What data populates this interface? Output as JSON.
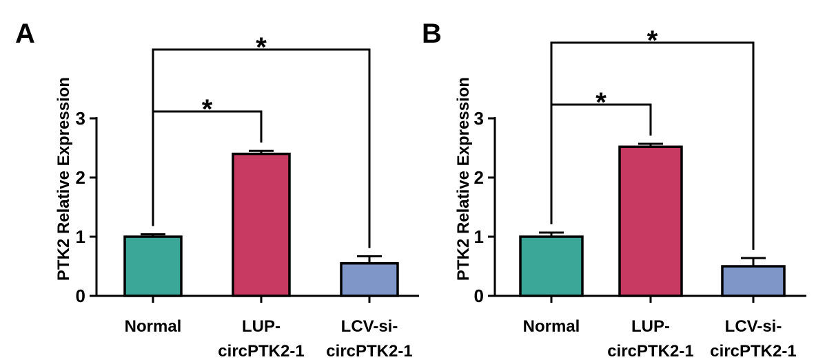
{
  "chart_data": [
    {
      "type": "bar",
      "panel": "A",
      "ylabel": "PTK2 Relative Expression",
      "ylim": [
        0,
        3
      ],
      "yticks": [
        "0",
        "1",
        "2",
        "3"
      ],
      "categories": [
        [
          "Normal"
        ],
        [
          "LUP-",
          "circPTK2-1"
        ],
        [
          "LCV-si-",
          "circPTK2-1"
        ]
      ],
      "values": [
        1.0,
        2.4,
        0.55
      ],
      "errors": [
        0.04,
        0.05,
        0.12
      ],
      "colors": [
        "#3aa798",
        "#c83a62",
        "#7f96c8"
      ],
      "significance": [
        {
          "from": 0,
          "to": 1,
          "label": "*"
        },
        {
          "from": 0,
          "to": 2,
          "label": "*"
        }
      ]
    },
    {
      "type": "bar",
      "panel": "B",
      "ylabel": "PTK2 Relative Expression",
      "ylim": [
        0,
        3
      ],
      "yticks": [
        "0",
        "1",
        "2",
        "3"
      ],
      "categories": [
        [
          "Normal"
        ],
        [
          "LUP-",
          "circPTK2-1"
        ],
        [
          "LCV-si-",
          "circPTK2-1"
        ]
      ],
      "values": [
        1.0,
        2.52,
        0.5
      ],
      "errors": [
        0.07,
        0.05,
        0.14
      ],
      "colors": [
        "#3aa798",
        "#c83a62",
        "#7f96c8"
      ],
      "significance": [
        {
          "from": 0,
          "to": 1,
          "label": "*"
        },
        {
          "from": 0,
          "to": 2,
          "label": "*"
        }
      ]
    }
  ]
}
